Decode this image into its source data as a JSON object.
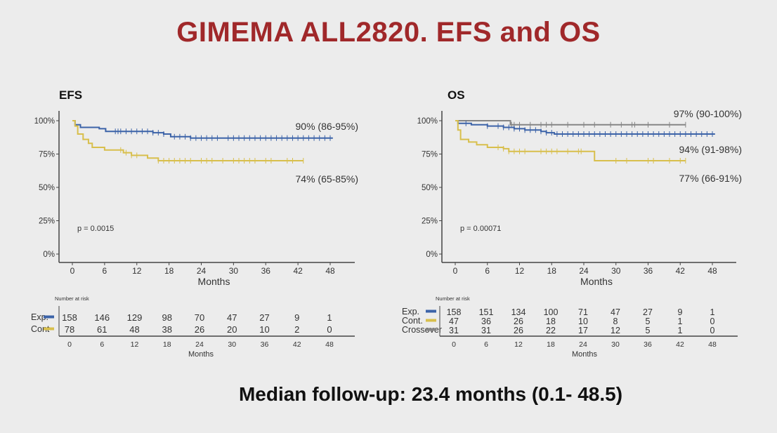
{
  "slide": {
    "title": "GIMEMA ALL2820. EFS and OS",
    "footer": "Median follow-up: 23.4 months (0.1- 48.5)"
  },
  "colors": {
    "exp": "#3c63a8",
    "cont": "#d8bf4c",
    "crossover": "#858585",
    "title": "#a0282a"
  },
  "chart_data": [
    {
      "type": "line",
      "subtype": "kaplan-meier",
      "title": "EFS",
      "xlabel": "Months",
      "ylabel": "",
      "xlim": [
        0,
        52
      ],
      "ylim": [
        0,
        100
      ],
      "xticks": [
        "0",
        "6",
        "12",
        "18",
        "24",
        "30",
        "36",
        "42",
        "48"
      ],
      "yticks": [
        "0%",
        "25%",
        "50%",
        "75%",
        "100%"
      ],
      "grid": false,
      "pvalue": "p = 0.0015",
      "series": [
        {
          "name": "Exp.",
          "color": "#3c63a8",
          "annotation": "90% (86-95%)",
          "steps": [
            [
              0,
              100
            ],
            [
              0.5,
              97
            ],
            [
              1.5,
              95
            ],
            [
              5,
              94
            ],
            [
              6.2,
              92
            ],
            [
              15,
              91
            ],
            [
              17,
              90
            ],
            [
              18.3,
              88
            ],
            [
              22,
              87
            ],
            [
              48.5,
              87
            ]
          ],
          "censor": [
            8,
            8.5,
            9,
            10,
            11,
            12,
            13,
            14,
            15,
            16,
            17,
            19,
            20,
            21,
            22,
            23,
            24,
            25,
            26,
            27,
            29,
            30,
            31,
            32,
            33,
            34,
            35,
            36,
            37,
            38,
            39,
            40,
            41,
            42,
            43,
            44,
            45,
            46,
            47,
            48
          ]
        },
        {
          "name": "Cont",
          "color": "#d8bf4c",
          "annotation": "74% (65-85%)",
          "steps": [
            [
              0,
              100
            ],
            [
              0.5,
              96
            ],
            [
              1,
              90
            ],
            [
              2,
              86
            ],
            [
              3,
              83
            ],
            [
              3.7,
              80
            ],
            [
              6,
              78
            ],
            [
              9.5,
              76
            ],
            [
              11,
              74
            ],
            [
              14,
              72
            ],
            [
              16,
              70
            ],
            [
              43,
              70
            ]
          ],
          "censor": [
            9,
            10,
            11,
            12,
            16,
            17,
            18,
            19,
            20,
            21,
            22,
            24,
            25,
            26,
            28,
            30,
            31,
            32,
            33,
            34,
            36,
            37,
            40,
            41,
            43
          ]
        }
      ],
      "risk_table": {
        "label": "Number at risk",
        "xlabel": "Months",
        "times": [
          "0",
          "6",
          "12",
          "18",
          "24",
          "30",
          "36",
          "42",
          "48"
        ],
        "rows": [
          {
            "label": "Exp.",
            "color": "#3c63a8",
            "values": [
              "158",
              "146",
              "129",
              "98",
              "70",
              "47",
              "27",
              "9",
              "1"
            ]
          },
          {
            "label": "Cont",
            "color": "#d8bf4c",
            "values": [
              "78",
              "61",
              "48",
              "38",
              "26",
              "20",
              "10",
              "2",
              "0"
            ]
          }
        ]
      }
    },
    {
      "type": "line",
      "subtype": "kaplan-meier",
      "title": "OS",
      "xlabel": "Months",
      "ylabel": "",
      "xlim": [
        0,
        52
      ],
      "ylim": [
        0,
        100
      ],
      "xticks": [
        "0",
        "6",
        "12",
        "18",
        "24",
        "30",
        "36",
        "42",
        "48"
      ],
      "yticks": [
        "0%",
        "25%",
        "50%",
        "75%",
        "100%"
      ],
      "grid": false,
      "pvalue": "p = 0.00071",
      "series": [
        {
          "name": "Crossover",
          "color": "#858585",
          "annotation": "97% (90-100%)",
          "steps": [
            [
              0,
              100
            ],
            [
              10.3,
              97
            ],
            [
              43,
              97
            ]
          ],
          "censor": [
            10.5,
            11,
            12,
            14,
            16,
            17,
            18,
            21,
            24,
            26,
            29,
            31,
            33,
            33.5,
            36,
            40,
            43
          ]
        },
        {
          "name": "Exp.",
          "color": "#3c63a8",
          "annotation": "94% (91-98%)",
          "steps": [
            [
              0,
              100
            ],
            [
              0.5,
              98
            ],
            [
              3,
              97
            ],
            [
              6,
              96
            ],
            [
              9,
              95
            ],
            [
              11,
              94
            ],
            [
              13,
              93
            ],
            [
              16,
              92
            ],
            [
              17,
              91
            ],
            [
              18.5,
              90
            ],
            [
              48.5,
              90
            ]
          ],
          "censor": [
            2,
            6,
            8,
            9,
            10,
            11,
            12,
            13,
            14,
            15,
            16,
            17,
            18,
            19,
            20,
            21,
            22,
            23,
            24,
            25,
            26,
            27,
            28,
            29,
            30,
            31,
            32,
            33,
            34,
            35,
            36,
            37,
            38,
            39,
            40,
            41,
            42,
            43,
            44,
            45,
            46,
            47,
            48
          ]
        },
        {
          "name": "Cont.",
          "color": "#d8bf4c",
          "annotation": "77% (66-91%)",
          "steps": [
            [
              0,
              100
            ],
            [
              0.5,
              93
            ],
            [
              1,
              86
            ],
            [
              2.5,
              84
            ],
            [
              4,
              82
            ],
            [
              6,
              80
            ],
            [
              9,
              79
            ],
            [
              10,
              77
            ],
            [
              26,
              70
            ],
            [
              43,
              70
            ]
          ],
          "censor": [
            8,
            9,
            10,
            11,
            12,
            13,
            16,
            17,
            18,
            19,
            21,
            23,
            23.5,
            30,
            32,
            36,
            37,
            40,
            42,
            43
          ]
        }
      ],
      "risk_table": {
        "label": "Number at risk",
        "xlabel": "Months",
        "times": [
          "0",
          "6",
          "12",
          "18",
          "24",
          "30",
          "36",
          "42",
          "48"
        ],
        "rows": [
          {
            "label": "Exp.",
            "color": "#3c63a8",
            "values": [
              "158",
              "151",
              "134",
              "100",
              "71",
              "47",
              "27",
              "9",
              "1"
            ]
          },
          {
            "label": "Cont.",
            "color": "#d8bf4c",
            "values": [
              "47",
              "36",
              "26",
              "18",
              "10",
              "8",
              "5",
              "1",
              "0"
            ]
          },
          {
            "label": "Crossover",
            "color": "#858585",
            "values": [
              "31",
              "31",
              "26",
              "22",
              "17",
              "12",
              "5",
              "1",
              "0"
            ]
          }
        ]
      }
    }
  ]
}
